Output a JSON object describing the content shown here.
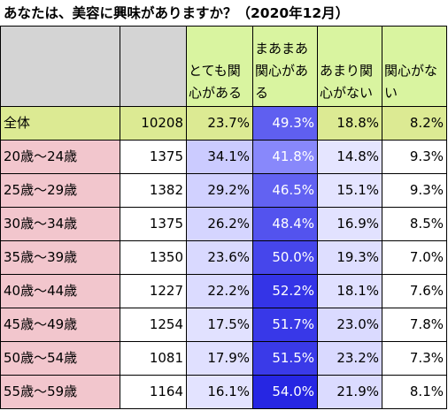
{
  "title": "あなたは、美容に興味がありますか？（2020年12月）",
  "chart_data": {
    "type": "table",
    "title": "あなたは、美容に興味がありますか？（2020年12月）",
    "columns": [
      "",
      "",
      "とても関心がある",
      "まあまあ関心がある",
      "あまり関心がない",
      "関心がない"
    ],
    "rows": [
      {
        "label": "全体",
        "n": "10208",
        "values": [
          "23.7%",
          "49.3%",
          "18.8%",
          "8.2%"
        ]
      },
      {
        "label": "20歳～24歳",
        "n": "1375",
        "values": [
          "34.1%",
          "41.8%",
          "14.8%",
          "9.3%"
        ]
      },
      {
        "label": "25歳～29歳",
        "n": "1382",
        "values": [
          "29.2%",
          "46.5%",
          "15.1%",
          "9.3%"
        ]
      },
      {
        "label": "30歳～34歳",
        "n": "1375",
        "values": [
          "26.2%",
          "48.4%",
          "16.9%",
          "8.5%"
        ]
      },
      {
        "label": "35歳～39歳",
        "n": "1350",
        "values": [
          "23.6%",
          "50.0%",
          "19.3%",
          "7.0%"
        ]
      },
      {
        "label": "40歳～44歳",
        "n": "1227",
        "values": [
          "22.2%",
          "52.2%",
          "18.1%",
          "7.6%"
        ]
      },
      {
        "label": "45歳～49歳",
        "n": "1254",
        "values": [
          "17.5%",
          "51.7%",
          "23.0%",
          "7.8%"
        ]
      },
      {
        "label": "50歳～54歳",
        "n": "1081",
        "values": [
          "17.9%",
          "51.5%",
          "23.2%",
          "7.3%"
        ]
      },
      {
        "label": "55歳～59歳",
        "n": "1164",
        "values": [
          "16.1%",
          "54.0%",
          "21.9%",
          "8.1%"
        ]
      }
    ]
  }
}
